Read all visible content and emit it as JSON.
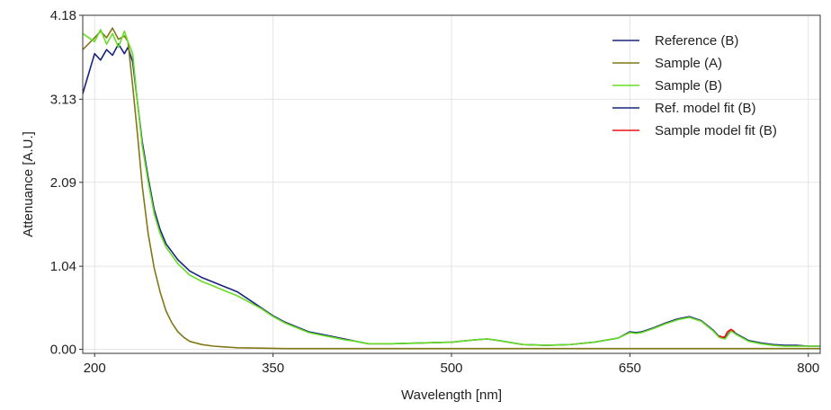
{
  "chart_data": {
    "type": "line",
    "xlabel": "Wavelength [nm]",
    "ylabel": "Attenuance [A.U.]",
    "xlim": [
      190,
      810
    ],
    "ylim": [
      -0.05,
      4.18
    ],
    "x_ticks": [
      200,
      350,
      500,
      650,
      800
    ],
    "y_ticks": [
      0.0,
      1.04,
      2.09,
      3.13,
      4.18
    ],
    "x_tick_labels": [
      "200",
      "350",
      "500",
      "650",
      "800"
    ],
    "y_tick_labels": [
      "0.00",
      "1.04",
      "2.09",
      "3.13",
      "4.18"
    ],
    "grid": true,
    "legend_position": "top-right",
    "series": [
      {
        "name": "Reference (B)",
        "color": "#1a237e",
        "x": [
          190,
          200,
          205,
          210,
          215,
          220,
          225,
          228,
          232,
          236,
          240,
          245,
          250,
          255,
          260,
          270,
          280,
          290,
          300,
          310,
          320,
          330,
          340,
          350,
          360,
          370,
          380,
          390,
          400,
          410,
          420,
          430,
          450,
          500,
          520,
          530,
          540,
          560,
          580,
          600,
          620,
          640,
          650,
          655,
          660,
          670,
          680,
          690,
          700,
          710,
          720,
          725,
          730,
          735,
          740,
          750,
          760,
          770,
          780,
          790,
          800,
          810
        ],
        "y": [
          3.2,
          3.7,
          3.62,
          3.75,
          3.68,
          3.82,
          3.7,
          3.78,
          3.6,
          3.1,
          2.6,
          2.15,
          1.75,
          1.5,
          1.32,
          1.12,
          0.98,
          0.9,
          0.84,
          0.78,
          0.72,
          0.62,
          0.52,
          0.42,
          0.34,
          0.28,
          0.22,
          0.19,
          0.16,
          0.13,
          0.1,
          0.07,
          0.07,
          0.09,
          0.12,
          0.13,
          0.11,
          0.06,
          0.05,
          0.06,
          0.09,
          0.14,
          0.22,
          0.21,
          0.22,
          0.27,
          0.33,
          0.38,
          0.41,
          0.36,
          0.24,
          0.16,
          0.14,
          0.24,
          0.19,
          0.11,
          0.08,
          0.06,
          0.05,
          0.05,
          0.04,
          0.04
        ]
      },
      {
        "name": "Sample (A)",
        "color": "#827717",
        "x": [
          190,
          200,
          205,
          210,
          215,
          220,
          225,
          228,
          232,
          236,
          240,
          245,
          250,
          255,
          260,
          265,
          270,
          275,
          280,
          290,
          300,
          310,
          320,
          340,
          360,
          400,
          450,
          500,
          550,
          600,
          650,
          700,
          750,
          800,
          810
        ],
        "y": [
          3.75,
          3.9,
          3.98,
          3.9,
          4.02,
          3.88,
          3.92,
          3.85,
          3.3,
          2.7,
          2.05,
          1.45,
          1.02,
          0.72,
          0.48,
          0.33,
          0.22,
          0.15,
          0.1,
          0.06,
          0.04,
          0.03,
          0.02,
          0.015,
          0.01,
          0.01,
          0.01,
          0.01,
          0.01,
          0.01,
          0.01,
          0.01,
          0.01,
          0.01,
          0.01
        ]
      },
      {
        "name": "Sample (B)",
        "color": "#66dd22",
        "x": [
          190,
          200,
          205,
          210,
          215,
          220,
          225,
          228,
          232,
          236,
          240,
          245,
          250,
          255,
          260,
          270,
          280,
          290,
          300,
          310,
          320,
          330,
          340,
          350,
          360,
          370,
          380,
          390,
          400,
          410,
          420,
          430,
          450,
          500,
          520,
          530,
          540,
          560,
          580,
          600,
          620,
          640,
          650,
          655,
          660,
          670,
          680,
          690,
          700,
          710,
          720,
          725,
          730,
          735,
          740,
          750,
          760,
          770,
          780,
          790,
          800,
          810
        ],
        "y": [
          3.95,
          3.85,
          4.0,
          3.82,
          3.95,
          3.78,
          3.98,
          3.85,
          3.7,
          3.1,
          2.55,
          2.1,
          1.7,
          1.45,
          1.28,
          1.07,
          0.93,
          0.85,
          0.79,
          0.73,
          0.67,
          0.59,
          0.51,
          0.41,
          0.33,
          0.27,
          0.21,
          0.18,
          0.15,
          0.12,
          0.1,
          0.07,
          0.07,
          0.09,
          0.12,
          0.13,
          0.11,
          0.06,
          0.05,
          0.06,
          0.09,
          0.14,
          0.21,
          0.2,
          0.21,
          0.26,
          0.32,
          0.37,
          0.4,
          0.35,
          0.23,
          0.15,
          0.13,
          0.23,
          0.18,
          0.1,
          0.07,
          0.05,
          0.04,
          0.04,
          0.04,
          0.04
        ]
      },
      {
        "name": "Ref. model fit (B)",
        "color": "#1a237e",
        "x": [],
        "y": []
      },
      {
        "name": "Sample model fit (B)",
        "color": "#ee1111",
        "x": [
          725,
          728,
          730,
          732,
          735,
          738
        ],
        "y": [
          0.17,
          0.15,
          0.16,
          0.22,
          0.25,
          0.22
        ]
      }
    ]
  }
}
